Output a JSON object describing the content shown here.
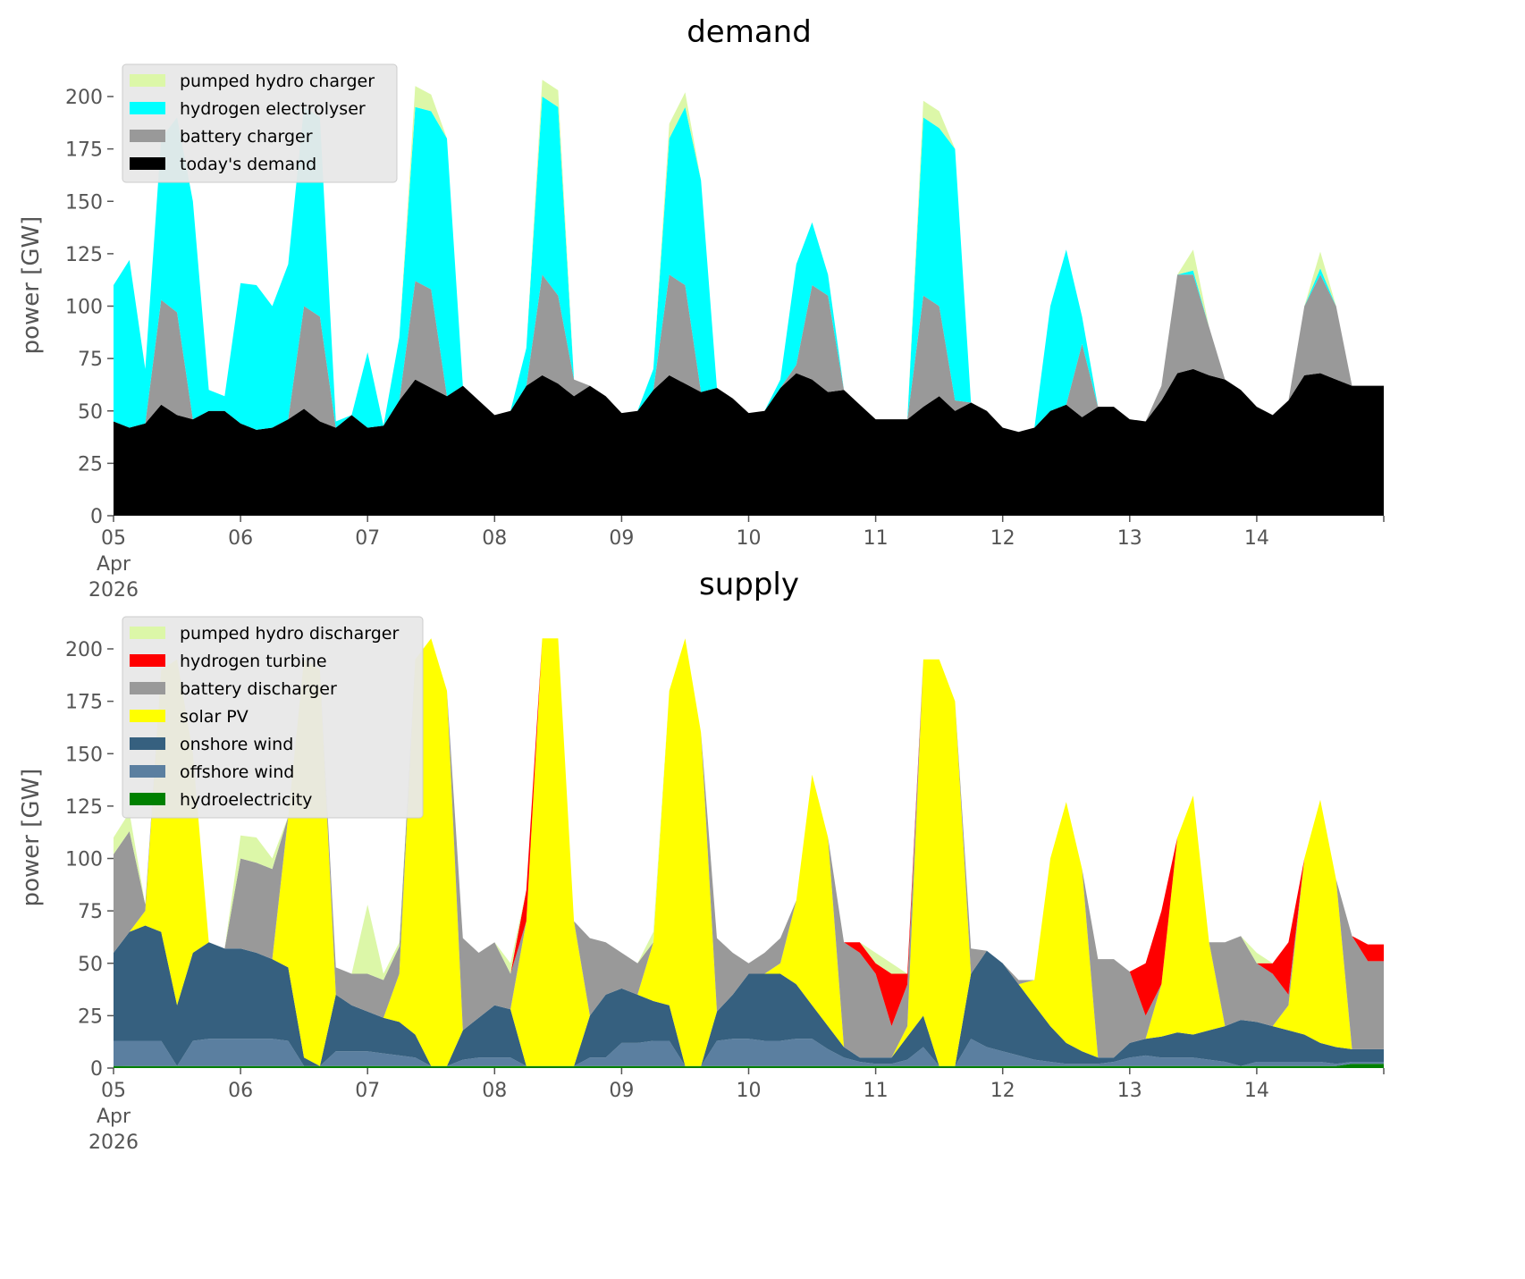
{
  "chart_data": [
    {
      "type": "area",
      "stacked": true,
      "title": "demand",
      "xlabel": "",
      "ylabel": "power [GW]",
      "ylim": [
        0,
        217
      ],
      "yticks": [
        0,
        25,
        50,
        75,
        100,
        125,
        150,
        175,
        200
      ],
      "x_start": "2026-04-05 00:00",
      "step_hours": 3,
      "xtick_labels": [
        "05\nApr\n2026",
        "06",
        "07",
        "08",
        "09",
        "10",
        "11",
        "12",
        "13",
        "14"
      ],
      "grid": false,
      "legend_placement": "top-left",
      "series": [
        {
          "name": "today's demand",
          "color": "#000000",
          "values": [
            45,
            42,
            44,
            53,
            48,
            46,
            50,
            50,
            44,
            41,
            42,
            46,
            51,
            45,
            42,
            48,
            42,
            43,
            55,
            65,
            61,
            57,
            62,
            55,
            48,
            50,
            62,
            67,
            63,
            57,
            62,
            57,
            49,
            50,
            60,
            67,
            63,
            59,
            61,
            56,
            49,
            50,
            61,
            68,
            65,
            59,
            60,
            53,
            46,
            46,
            46,
            52,
            57,
            50,
            54,
            50,
            42,
            40,
            42,
            50,
            53,
            47,
            52,
            52,
            46,
            45,
            55,
            68,
            70,
            67,
            65,
            60,
            52,
            48,
            55,
            67,
            68,
            65,
            62,
            62
          ]
        },
        {
          "name": "battery charger",
          "color": "#999999",
          "values": [
            0,
            0,
            0,
            50,
            49,
            0,
            0,
            0,
            0,
            0,
            0,
            0,
            49,
            50,
            0,
            0,
            0,
            0,
            0,
            47,
            47,
            0,
            0,
            0,
            0,
            0,
            0,
            48,
            42,
            8,
            0,
            0,
            0,
            0,
            0,
            48,
            47,
            0,
            0,
            0,
            0,
            0,
            0,
            4,
            45,
            46,
            0,
            0,
            0,
            0,
            0,
            53,
            43,
            5,
            0,
            0,
            0,
            0,
            0,
            0,
            0,
            35,
            0,
            0,
            0,
            0,
            7,
            47,
            45,
            23,
            0,
            0,
            0,
            0,
            0,
            33,
            47,
            35,
            0,
            0
          ]
        },
        {
          "name": "hydrogen electrolyser",
          "color": "#00ffff",
          "values": [
            65,
            80,
            26,
            77,
            93,
            104,
            10,
            7,
            67,
            69,
            58,
            74,
            95,
            95,
            3,
            0,
            36,
            0,
            30,
            83,
            85,
            123,
            0,
            0,
            0,
            0,
            18,
            85,
            90,
            0,
            0,
            0,
            0,
            0,
            10,
            65,
            85,
            101,
            0,
            0,
            0,
            0,
            4,
            48,
            30,
            10,
            0,
            0,
            0,
            0,
            0,
            85,
            85,
            120,
            0,
            0,
            0,
            0,
            0,
            50,
            74,
            13,
            0,
            0,
            0,
            0,
            0,
            0,
            2,
            0,
            0,
            0,
            0,
            0,
            0,
            0,
            3,
            0,
            0,
            0
          ]
        },
        {
          "name": "pumped hydro charger",
          "color": "#dcf7a8",
          "values": [
            0,
            0,
            0,
            0,
            0,
            0,
            0,
            0,
            0,
            0,
            0,
            0,
            0,
            0,
            0,
            0,
            0,
            0,
            0,
            10,
            8,
            0,
            0,
            0,
            0,
            0,
            0,
            8,
            8,
            0,
            0,
            0,
            0,
            0,
            0,
            7,
            7,
            0,
            0,
            0,
            0,
            0,
            0,
            0,
            0,
            0,
            0,
            0,
            0,
            0,
            0,
            8,
            8,
            0,
            0,
            0,
            0,
            0,
            0,
            0,
            0,
            0,
            0,
            0,
            0,
            0,
            0,
            0,
            10,
            0,
            0,
            0,
            0,
            0,
            0,
            0,
            8,
            0,
            0,
            0
          ]
        }
      ]
    },
    {
      "type": "area",
      "stacked": true,
      "title": "supply",
      "xlabel": "",
      "ylabel": "power [GW]",
      "ylim": [
        0,
        217
      ],
      "yticks": [
        0,
        25,
        50,
        75,
        100,
        125,
        150,
        175,
        200
      ],
      "x_start": "2026-04-05 00:00",
      "step_hours": 3,
      "xtick_labels": [
        "05\nApr\n2026",
        "06",
        "07",
        "08",
        "09",
        "10",
        "11",
        "12",
        "13",
        "14"
      ],
      "grid": false,
      "legend_placement": "top-left",
      "series": [
        {
          "name": "hydroelectricity",
          "color": "#008000",
          "values": [
            1,
            1,
            1,
            1,
            1,
            1,
            1,
            1,
            1,
            1,
            1,
            1,
            1,
            1,
            1,
            1,
            1,
            1,
            1,
            1,
            1,
            1,
            1,
            1,
            1,
            1,
            1,
            1,
            1,
            1,
            1,
            1,
            1,
            1,
            1,
            1,
            1,
            1,
            1,
            1,
            1,
            1,
            1,
            1,
            1,
            1,
            1,
            1,
            1,
            1,
            1,
            1,
            1,
            1,
            1,
            1,
            1,
            1,
            1,
            1,
            1,
            1,
            1,
            1,
            1,
            1,
            1,
            1,
            1,
            1,
            1,
            1,
            1,
            1,
            1,
            1,
            1,
            1,
            2,
            2
          ]
        },
        {
          "name": "offshore wind",
          "color": "#5b7fa0",
          "values": [
            12,
            12,
            12,
            12,
            0,
            12,
            13,
            13,
            13,
            13,
            13,
            12,
            0,
            0,
            7,
            7,
            7,
            6,
            5,
            4,
            0,
            0,
            3,
            4,
            4,
            4,
            0,
            0,
            0,
            0,
            4,
            4,
            11,
            11,
            12,
            12,
            0,
            0,
            12,
            13,
            13,
            12,
            12,
            13,
            13,
            8,
            4,
            2,
            1,
            1,
            3,
            9,
            0,
            0,
            13,
            9,
            7,
            5,
            3,
            2,
            1,
            1,
            1,
            2,
            4,
            5,
            4,
            4,
            4,
            3,
            2,
            0,
            2,
            2,
            2,
            2,
            2,
            1,
            1,
            1
          ]
        },
        {
          "name": "onshore wind",
          "color": "#36607f",
          "values": [
            42,
            52,
            55,
            52,
            29,
            42,
            46,
            43,
            43,
            41,
            38,
            35,
            4,
            0,
            27,
            22,
            19,
            17,
            16,
            11,
            0,
            0,
            14,
            19,
            25,
            23,
            0,
            0,
            0,
            0,
            20,
            30,
            26,
            23,
            19,
            17,
            0,
            0,
            14,
            21,
            31,
            32,
            32,
            26,
            16,
            11,
            5,
            2,
            3,
            3,
            11,
            15,
            0,
            0,
            31,
            46,
            42,
            34,
            26,
            17,
            10,
            6,
            3,
            2,
            7,
            8,
            10,
            12,
            11,
            14,
            17,
            22,
            19,
            17,
            15,
            13,
            9,
            8,
            6,
            6
          ]
        },
        {
          "name": "solar PV",
          "color": "#ffff00",
          "values": [
            0,
            0,
            7,
            125,
            165,
            95,
            0,
            0,
            0,
            0,
            0,
            72,
            190,
            189,
            0,
            0,
            0,
            0,
            23,
            179,
            204,
            179,
            0,
            0,
            0,
            0,
            69,
            204,
            204,
            69,
            0,
            0,
            0,
            0,
            28,
            150,
            204,
            159,
            0,
            0,
            0,
            0,
            5,
            40,
            110,
            90,
            0,
            0,
            0,
            0,
            5,
            170,
            194,
            174,
            0,
            0,
            0,
            0,
            12,
            80,
            115,
            87,
            0,
            0,
            0,
            0,
            25,
            93,
            114,
            42,
            0,
            0,
            0,
            0,
            12,
            84,
            116,
            80,
            0,
            0
          ]
        },
        {
          "name": "battery discharger",
          "color": "#999999",
          "values": [
            47,
            48,
            3,
            0,
            0,
            0,
            0,
            0,
            43,
            43,
            43,
            0,
            0,
            0,
            13,
            15,
            18,
            18,
            13,
            0,
            0,
            0,
            44,
            31,
            30,
            17,
            0,
            0,
            0,
            0,
            37,
            25,
            17,
            15,
            0,
            0,
            0,
            0,
            35,
            20,
            5,
            10,
            12,
            0,
            0,
            0,
            50,
            50,
            40,
            15,
            20,
            0,
            0,
            0,
            12,
            0,
            0,
            2,
            0,
            0,
            0,
            0,
            47,
            47,
            34,
            11,
            0,
            0,
            0,
            0,
            40,
            40,
            28,
            25,
            5,
            0,
            0,
            0,
            54,
            42
          ]
        },
        {
          "name": "hydrogen turbine",
          "color": "#ff0000",
          "values": [
            0,
            0,
            0,
            0,
            0,
            0,
            0,
            0,
            0,
            0,
            0,
            0,
            0,
            0,
            0,
            0,
            0,
            0,
            0,
            0,
            0,
            0,
            0,
            0,
            0,
            0,
            15,
            0,
            0,
            0,
            0,
            0,
            0,
            0,
            0,
            0,
            0,
            0,
            0,
            0,
            0,
            0,
            0,
            0,
            0,
            0,
            0,
            5,
            5,
            25,
            5,
            0,
            0,
            0,
            0,
            0,
            0,
            0,
            0,
            0,
            0,
            0,
            0,
            0,
            0,
            25,
            35,
            0,
            0,
            0,
            0,
            0,
            0,
            5,
            25,
            0,
            0,
            0,
            0,
            8
          ]
        },
        {
          "name": "pumped hydro discharger",
          "color": "#dcf7a8",
          "values": [
            8,
            9,
            0,
            0,
            0,
            0,
            0,
            0,
            11,
            12,
            5,
            0,
            0,
            0,
            0,
            0,
            33,
            3,
            2,
            0,
            0,
            0,
            0,
            0,
            0,
            5,
            0,
            0,
            0,
            0,
            0,
            0,
            0,
            0,
            5,
            0,
            0,
            0,
            0,
            0,
            0,
            0,
            0,
            0,
            0,
            0,
            0,
            0,
            5,
            5,
            0,
            0,
            0,
            0,
            0,
            0,
            0,
            0,
            0,
            0,
            0,
            0,
            0,
            0,
            0,
            0,
            0,
            0,
            0,
            0,
            0,
            0,
            5,
            0,
            0,
            0,
            0,
            0,
            0,
            0
          ]
        }
      ]
    }
  ]
}
